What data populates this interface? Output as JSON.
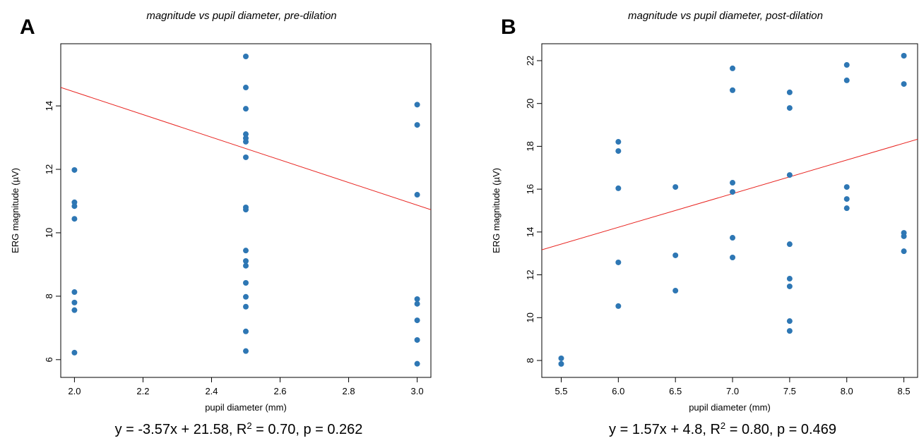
{
  "chart_data": [
    {
      "type": "scatter",
      "panel": "A",
      "title": "magnitude vs pupil diameter, pre-dilation",
      "x_label": "pupil diameter (mm)",
      "y_label": "ERG magnitude (µV)",
      "xlim": [
        1.96,
        3.04
      ],
      "ylim": [
        5.44,
        15.96
      ],
      "xticks": [
        {
          "value": 2.0,
          "label": "2.0"
        },
        {
          "value": 2.2,
          "label": "2.2"
        },
        {
          "value": 2.4,
          "label": "2.4"
        },
        {
          "value": 2.6,
          "label": "2.6"
        },
        {
          "value": 2.8,
          "label": "2.8"
        },
        {
          "value": 3.0,
          "label": "3.0"
        }
      ],
      "yticks": [
        6,
        8,
        10,
        12,
        14
      ],
      "series": [
        {
          "color": "#2e77b4",
          "x": [
            2.0,
            2.0,
            2.0,
            2.0,
            2.0,
            2.0,
            2.0,
            2.0,
            2.5,
            2.5,
            2.5,
            2.5,
            2.5,
            2.5,
            2.5,
            2.5,
            2.5,
            2.5,
            2.5,
            2.5,
            2.5,
            2.5,
            2.5,
            2.5,
            2.5,
            3.0,
            3.0,
            3.0,
            3.0,
            3.0,
            3.0,
            3.0,
            3.0
          ],
          "values": [
            11.98,
            10.96,
            10.84,
            10.44,
            8.13,
            7.8,
            7.56,
            6.22,
            15.56,
            14.58,
            13.91,
            13.11,
            12.98,
            12.87,
            12.38,
            10.8,
            10.73,
            9.44,
            9.11,
            8.96,
            8.42,
            7.98,
            7.67,
            6.89,
            6.27,
            14.04,
            13.4,
            11.2,
            7.91,
            7.76,
            7.24,
            6.62,
            5.87
          ]
        }
      ],
      "fit": {
        "slope": -3.57,
        "intercept": 21.58,
        "color": "#e8231f"
      },
      "annotation": [
        "y = -3.57x + 21.58, R",
        "2",
        " = 0.70, p = 0.262"
      ]
    },
    {
      "type": "scatter",
      "panel": "B",
      "title": "magnitude vs pupil diameter, post-dilation",
      "x_label": "pupil diameter (mm)",
      "y_label": "ERG magnitude (µV)",
      "xlim": [
        5.33,
        8.62
      ],
      "ylim": [
        7.21,
        22.79
      ],
      "xticks": [
        5.5,
        {
          "value": 6.0,
          "label": "6.0"
        },
        6.5,
        {
          "value": 7.0,
          "label": "7.0"
        },
        7.5,
        {
          "value": 8.0,
          "label": "8.0"
        },
        8.5
      ],
      "yticks": [
        8,
        10,
        12,
        14,
        16,
        18,
        20,
        22
      ],
      "series": [
        {
          "color": "#2e77b4",
          "x": [
            5.5,
            5.5,
            6.0,
            6.0,
            6.0,
            6.0,
            6.0,
            6.5,
            6.5,
            6.5,
            7.0,
            7.0,
            7.0,
            7.0,
            7.0,
            7.0,
            7.5,
            7.5,
            7.5,
            7.5,
            7.5,
            7.5,
            7.5,
            7.5,
            8.0,
            8.0,
            8.0,
            8.0,
            8.0,
            8.5,
            8.5,
            8.5,
            8.5,
            8.5
          ],
          "values": [
            8.1,
            7.84,
            18.21,
            17.78,
            16.04,
            12.58,
            10.54,
            16.1,
            12.91,
            11.26,
            21.64,
            20.62,
            16.3,
            15.87,
            13.73,
            12.81,
            20.52,
            19.79,
            16.66,
            13.43,
            11.82,
            11.46,
            9.84,
            9.38,
            21.8,
            21.08,
            16.1,
            15.54,
            15.11,
            22.23,
            20.91,
            13.96,
            13.8,
            13.1
          ]
        }
      ],
      "fit": {
        "slope": 1.57,
        "intercept": 4.8,
        "color": "#e8231f"
      },
      "annotation": [
        "y = 1.57x + 4.8, R",
        "2",
        " = 0.80, p = 0.469"
      ]
    }
  ]
}
